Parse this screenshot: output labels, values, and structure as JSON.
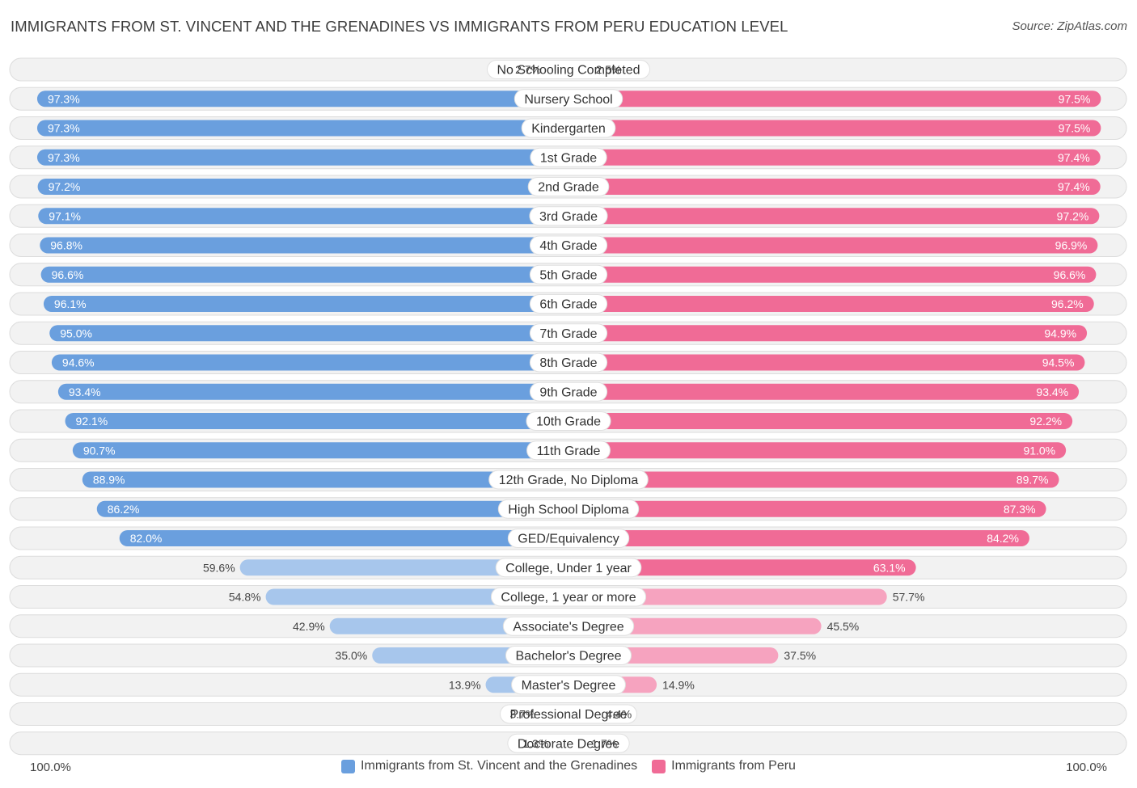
{
  "title": "IMMIGRANTS FROM ST. VINCENT AND THE GRENADINES VS IMMIGRANTS FROM PERU EDUCATION LEVEL",
  "source": "Source: ZipAtlas.com",
  "colors": {
    "left_strong": "#6a9fde",
    "left_light": "#a7c6ec",
    "right_strong": "#f06b96",
    "right_light": "#f6a3bf"
  },
  "chart_data": {
    "type": "bar",
    "orientation": "horizontal-diverging",
    "categories": [
      "No Schooling Completed",
      "Nursery School",
      "Kindergarten",
      "1st Grade",
      "2nd Grade",
      "3rd Grade",
      "4th Grade",
      "5th Grade",
      "6th Grade",
      "7th Grade",
      "8th Grade",
      "9th Grade",
      "10th Grade",
      "11th Grade",
      "12th Grade, No Diploma",
      "High School Diploma",
      "GED/Equivalency",
      "College, Under 1 year",
      "College, 1 year or more",
      "Associate's Degree",
      "Bachelor's Degree",
      "Master's Degree",
      "Professional Degree",
      "Doctorate Degree"
    ],
    "series": [
      {
        "name": "Immigrants from St. Vincent and the Grenadines",
        "side": "left",
        "values": [
          2.7,
          97.3,
          97.3,
          97.3,
          97.2,
          97.1,
          96.8,
          96.6,
          96.1,
          95.0,
          94.6,
          93.4,
          92.1,
          90.7,
          88.9,
          86.2,
          82.0,
          59.6,
          54.8,
          42.9,
          35.0,
          13.9,
          3.7,
          1.3
        ],
        "labels": [
          "2.7%",
          "97.3%",
          "97.3%",
          "97.3%",
          "97.2%",
          "97.1%",
          "96.8%",
          "96.6%",
          "96.1%",
          "95.0%",
          "94.6%",
          "93.4%",
          "92.1%",
          "90.7%",
          "88.9%",
          "86.2%",
          "82.0%",
          "59.6%",
          "54.8%",
          "42.9%",
          "35.0%",
          "13.9%",
          "3.7%",
          "1.3%"
        ]
      },
      {
        "name": "Immigrants from Peru",
        "side": "right",
        "values": [
          2.5,
          97.5,
          97.5,
          97.4,
          97.4,
          97.2,
          96.9,
          96.6,
          96.2,
          94.9,
          94.5,
          93.4,
          92.2,
          91.0,
          89.7,
          87.3,
          84.2,
          63.1,
          57.7,
          45.5,
          37.5,
          14.9,
          4.4,
          1.7
        ],
        "labels": [
          "2.5%",
          "97.5%",
          "97.5%",
          "97.4%",
          "97.4%",
          "97.2%",
          "96.9%",
          "96.6%",
          "96.2%",
          "94.9%",
          "94.5%",
          "93.4%",
          "92.2%",
          "91.0%",
          "89.7%",
          "87.3%",
          "84.2%",
          "63.1%",
          "57.7%",
          "45.5%",
          "37.5%",
          "14.9%",
          "4.4%",
          "1.7%"
        ]
      }
    ],
    "xlim": [
      0,
      100
    ],
    "axis_left_label": "100.0%",
    "axis_right_label": "100.0%",
    "legend_position": "bottom-center"
  }
}
